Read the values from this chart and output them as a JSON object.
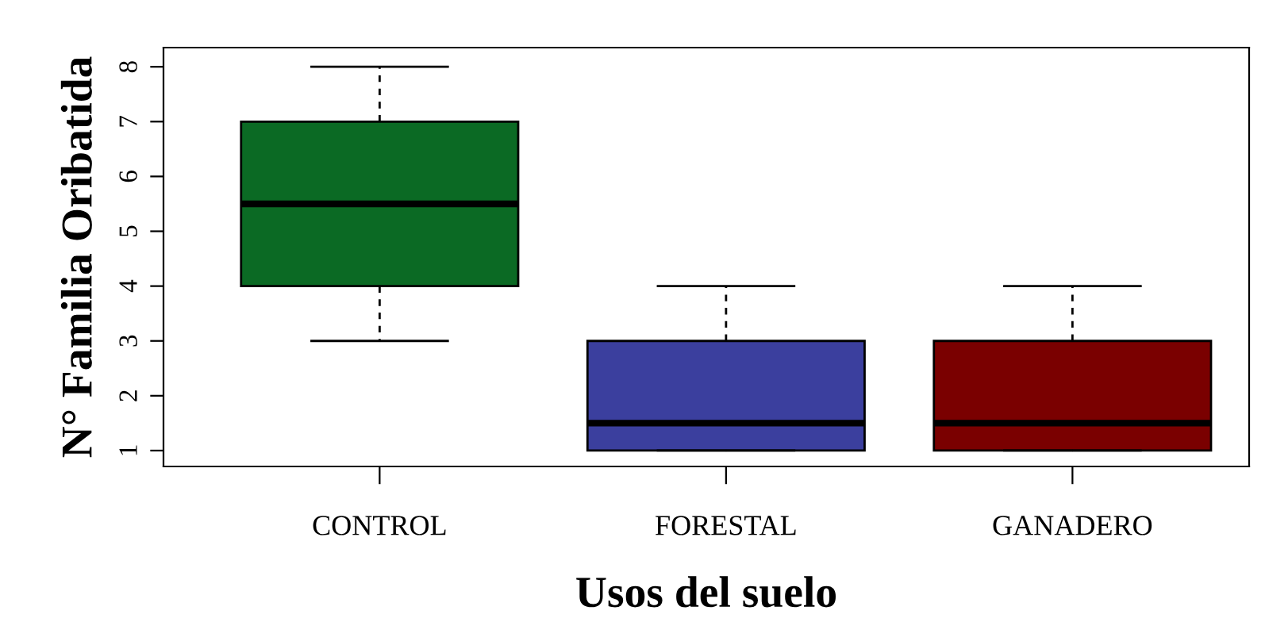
{
  "chart_data": {
    "type": "box",
    "xlabel": "Usos del suelo",
    "ylabel": "N° Familia Oribatida",
    "categories": [
      "CONTROL",
      "FORESTAL",
      "GANADERO"
    ],
    "colors": [
      "#0b6a24",
      "#3b3f9e",
      "#7a0000"
    ],
    "boxes": [
      {
        "low": 3,
        "q1": 4,
        "median": 5.5,
        "q3": 7,
        "high": 8
      },
      {
        "low": 1,
        "q1": 1,
        "median": 1.5,
        "q3": 3,
        "high": 4
      },
      {
        "low": 1,
        "q1": 1,
        "median": 1.5,
        "q3": 3,
        "high": 4
      }
    ],
    "ylim": [
      0.71,
      8.35
    ],
    "yticks": [
      1,
      2,
      3,
      4,
      5,
      6,
      7,
      8
    ],
    "grid": false,
    "legend": false
  }
}
